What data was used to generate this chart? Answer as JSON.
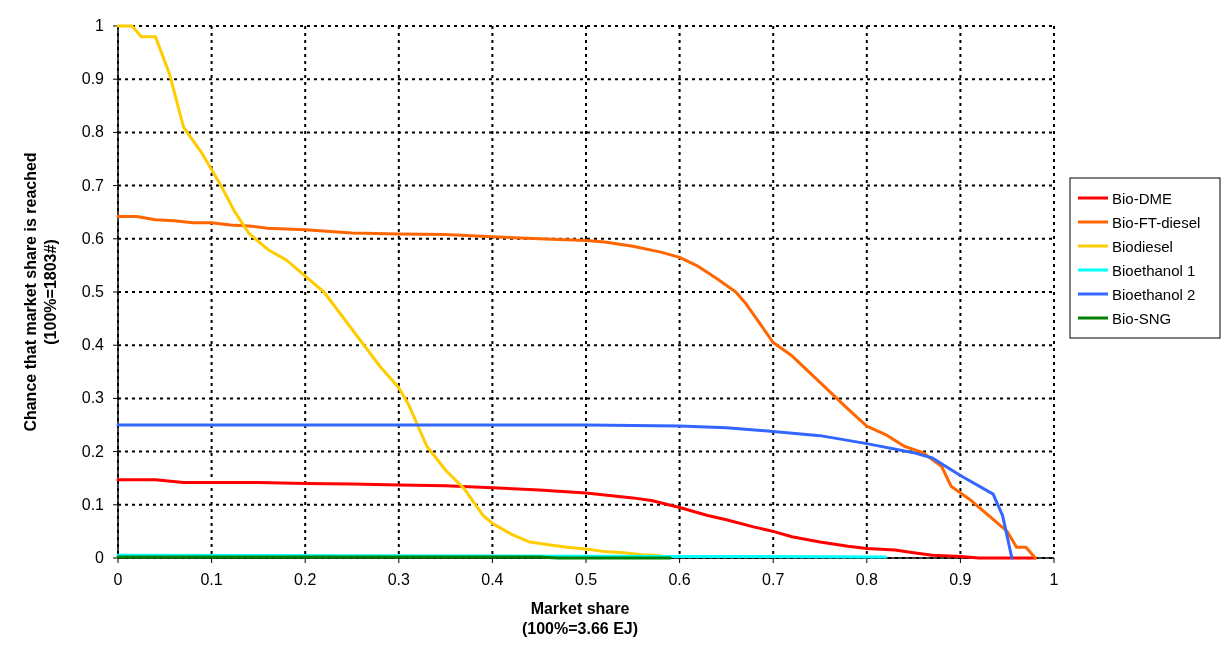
{
  "chart_data": {
    "type": "line",
    "xlabel": "Market share\n(100%=3.66 EJ)",
    "ylabel": "Chance that market share is reached\n(100%=1803#)",
    "xlim": [
      0,
      1
    ],
    "ylim": [
      0,
      1
    ],
    "xticks": [
      0,
      0.1,
      0.2,
      0.3,
      0.4,
      0.5,
      0.6,
      0.7,
      0.8,
      0.9,
      1
    ],
    "yticks": [
      0,
      0.1,
      0.2,
      0.3,
      0.4,
      0.5,
      0.6,
      0.7,
      0.8,
      0.9,
      1
    ],
    "grid": true,
    "legend": "right",
    "marker": "none",
    "series": [
      {
        "name": "Bio-DME",
        "color": "#ff0000",
        "x": [
          0,
          0.04,
          0.07,
          0.15,
          0.2,
          0.25,
          0.3,
          0.35,
          0.4,
          0.45,
          0.5,
          0.55,
          0.57,
          0.6,
          0.63,
          0.65,
          0.68,
          0.7,
          0.72,
          0.75,
          0.78,
          0.8,
          0.83,
          0.85,
          0.87,
          0.9,
          0.92,
          0.98
        ],
        "values": [
          0.147,
          0.147,
          0.142,
          0.142,
          0.14,
          0.139,
          0.137,
          0.136,
          0.132,
          0.128,
          0.122,
          0.113,
          0.108,
          0.095,
          0.08,
          0.072,
          0.058,
          0.05,
          0.04,
          0.03,
          0.022,
          0.018,
          0.015,
          0.01,
          0.005,
          0.003,
          0,
          0
        ]
      },
      {
        "name": "Bio-FT-diesel",
        "color": "#ff6600",
        "x": [
          0,
          0.02,
          0.04,
          0.06,
          0.08,
          0.1,
          0.12,
          0.14,
          0.16,
          0.2,
          0.25,
          0.3,
          0.35,
          0.4,
          0.45,
          0.5,
          0.52,
          0.55,
          0.58,
          0.6,
          0.62,
          0.64,
          0.66,
          0.67,
          0.68,
          0.7,
          0.72,
          0.75,
          0.78,
          0.8,
          0.82,
          0.84,
          0.86,
          0.88,
          0.89,
          0.91,
          0.93,
          0.95,
          0.96,
          0.97,
          0.98
        ],
        "values": [
          0.642,
          0.642,
          0.636,
          0.634,
          0.63,
          0.63,
          0.626,
          0.624,
          0.62,
          0.617,
          0.611,
          0.609,
          0.608,
          0.604,
          0.6,
          0.597,
          0.594,
          0.586,
          0.575,
          0.565,
          0.548,
          0.525,
          0.5,
          0.48,
          0.455,
          0.405,
          0.38,
          0.33,
          0.28,
          0.248,
          0.232,
          0.21,
          0.198,
          0.172,
          0.135,
          0.11,
          0.08,
          0.05,
          0.02,
          0.02,
          0
        ]
      },
      {
        "name": "Biodiesel",
        "color": "#ffcc00",
        "x": [
          0,
          0.015,
          0.025,
          0.04,
          0.055,
          0.07,
          0.09,
          0.11,
          0.125,
          0.14,
          0.16,
          0.18,
          0.2,
          0.22,
          0.25,
          0.28,
          0.3,
          0.31,
          0.32,
          0.33,
          0.35,
          0.37,
          0.39,
          0.4,
          0.42,
          0.44,
          0.46,
          0.48,
          0.5,
          0.52,
          0.54,
          0.56,
          0.58
        ],
        "values": [
          1,
          1,
          0.98,
          0.98,
          0.91,
          0.81,
          0.76,
          0.7,
          0.65,
          0.61,
          0.58,
          0.56,
          0.53,
          0.5,
          0.43,
          0.36,
          0.32,
          0.29,
          0.25,
          0.21,
          0.165,
          0.13,
          0.08,
          0.065,
          0.045,
          0.03,
          0.025,
          0.02,
          0.017,
          0.012,
          0.01,
          0.006,
          0.004
        ]
      },
      {
        "name": "Bioethanol 1",
        "color": "#00ffff",
        "x": [
          0,
          0.6,
          0.82
        ],
        "values": [
          0.005,
          0.003,
          0.002
        ]
      },
      {
        "name": "Bioethanol 2",
        "color": "#3366ff",
        "x": [
          0,
          0.5,
          0.6,
          0.65,
          0.7,
          0.75,
          0.8,
          0.85,
          0.87,
          0.9,
          0.935,
          0.945,
          0.955
        ],
        "values": [
          0.25,
          0.25,
          0.248,
          0.245,
          0.238,
          0.23,
          0.215,
          0.198,
          0.188,
          0.155,
          0.12,
          0.08,
          0
        ]
      },
      {
        "name": "Bio-SNG",
        "color": "#008000",
        "x": [
          0,
          0.45,
          0.47,
          0.59
        ],
        "values": [
          0.002,
          0.002,
          0,
          0
        ]
      }
    ]
  }
}
